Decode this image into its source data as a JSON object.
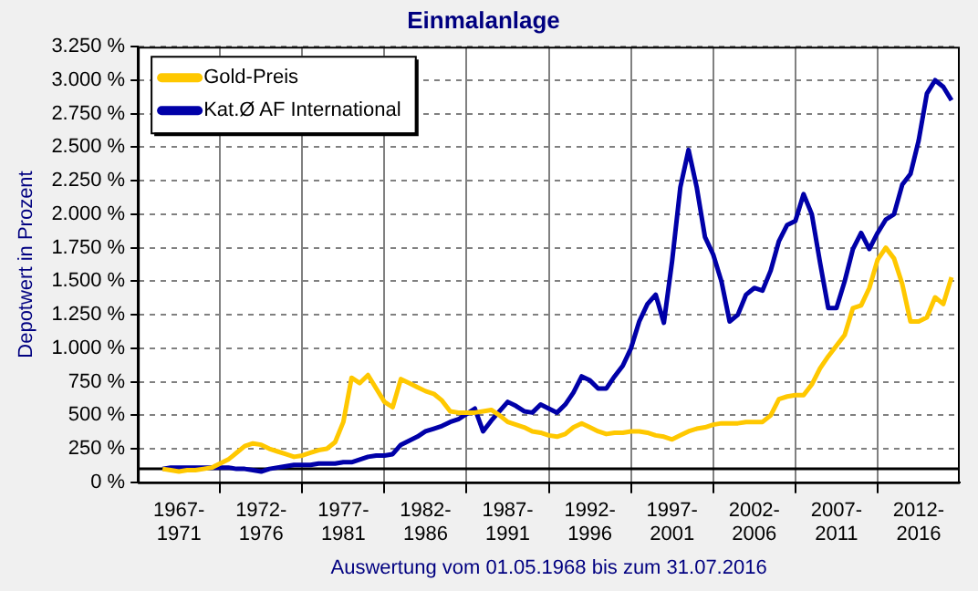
{
  "chart_data": {
    "type": "line",
    "title": "Einmalanlage",
    "xlabel": "Auswertung vom 01.05.1968 bis zum 31.07.2016",
    "ylabel": "Depotwert in Prozent",
    "categories": [
      null,
      null,
      null,
      null,
      null,
      "1967-1971",
      null,
      null,
      null,
      null,
      null,
      null,
      null,
      null,
      null,
      "1972-1976",
      null,
      null,
      null,
      null,
      null,
      null,
      null,
      null,
      null,
      "1977-1981",
      null,
      null,
      null,
      null,
      null,
      null,
      null,
      null,
      null,
      "1982-1986",
      null,
      null,
      null,
      null,
      null,
      null,
      null,
      null,
      null,
      "1987-1991",
      null,
      null,
      null,
      null,
      null,
      null,
      null,
      null,
      null,
      "1992-1996",
      null,
      null,
      null,
      null,
      null,
      null,
      null,
      null,
      null,
      "1997-2001",
      null,
      null,
      null,
      null,
      null,
      null,
      null,
      null,
      null,
      "2002-2006",
      null,
      null,
      null,
      null,
      null,
      null,
      null,
      null,
      null,
      "2007-2011",
      null,
      null,
      null,
      null,
      null,
      null,
      null,
      null,
      null,
      "2012-2016",
      null,
      null,
      null,
      null,
      null
    ],
    "ylim": [
      0,
      3250
    ],
    "yticks": [
      {
        "value": 0,
        "label": "0 %"
      },
      {
        "value": 250,
        "label": "250 %"
      },
      {
        "value": 500,
        "label": "500 %"
      },
      {
        "value": 750,
        "label": "750 %"
      },
      {
        "value": 1000,
        "label": "1.000 %"
      },
      {
        "value": 1250,
        "label": "1.250 %"
      },
      {
        "value": 1500,
        "label": "1.500 %"
      },
      {
        "value": 1750,
        "label": "1.750 %"
      },
      {
        "value": 2000,
        "label": "2.000 %"
      },
      {
        "value": 2250,
        "label": "2.250 %"
      },
      {
        "value": 2500,
        "label": "2.500 %"
      },
      {
        "value": 2750,
        "label": "2.750 %"
      },
      {
        "value": 3000,
        "label": "3.000 %"
      },
      {
        "value": 3250,
        "label": "3.250 %"
      }
    ],
    "grid": true,
    "legend": "top left",
    "marker": "none",
    "line_style": "solid",
    "ref_lines": [
      {
        "axis": "y",
        "value": 100,
        "color": "#000000"
      }
    ],
    "series": [
      {
        "name": "Gold-Preis",
        "color": "#ffc800",
        "values": [
          null,
          null,
          null,
          100,
          90,
          80,
          90,
          90,
          100,
          110,
          140,
          170,
          220,
          270,
          290,
          280,
          250,
          230,
          210,
          190,
          200,
          220,
          240,
          250,
          300,
          450,
          780,
          740,
          800,
          700,
          600,
          560,
          770,
          740,
          710,
          680,
          660,
          610,
          530,
          520,
          520,
          520,
          530,
          540,
          500,
          450,
          430,
          410,
          380,
          370,
          350,
          340,
          360,
          410,
          440,
          410,
          380,
          360,
          370,
          370,
          380,
          380,
          370,
          350,
          340,
          320,
          350,
          380,
          400,
          410,
          430,
          440,
          440,
          440,
          450,
          450,
          450,
          500,
          620,
          640,
          650,
          650,
          730,
          850,
          940,
          1020,
          1100,
          1300,
          1320,
          1450,
          1660,
          1750,
          1670,
          1480,
          1200,
          1200,
          1230,
          1380,
          1330,
          1530,
          null
        ]
      },
      {
        "name": "Kat.Ø AF International",
        "color": "#0000a8",
        "values": [
          null,
          null,
          null,
          100,
          110,
          110,
          110,
          110,
          110,
          110,
          110,
          110,
          100,
          100,
          90,
          80,
          100,
          110,
          120,
          130,
          130,
          130,
          140,
          140,
          140,
          150,
          150,
          170,
          190,
          200,
          200,
          210,
          280,
          310,
          340,
          380,
          400,
          420,
          450,
          470,
          510,
          550,
          380,
          460,
          530,
          600,
          570,
          530,
          520,
          580,
          550,
          520,
          580,
          670,
          790,
          760,
          700,
          700,
          790,
          870,
          1000,
          1200,
          1330,
          1400,
          1190,
          1650,
          2200,
          2480,
          2200,
          1830,
          1700,
          1500,
          1200,
          1250,
          1400,
          1450,
          1430,
          1580,
          1800,
          1920,
          1950,
          2150,
          2000,
          1640,
          1300,
          1300,
          1500,
          1740,
          1860,
          1740,
          1860,
          1960,
          2000,
          2220,
          2300,
          2550,
          2900,
          3000,
          2950,
          2850,
          null
        ]
      }
    ]
  }
}
